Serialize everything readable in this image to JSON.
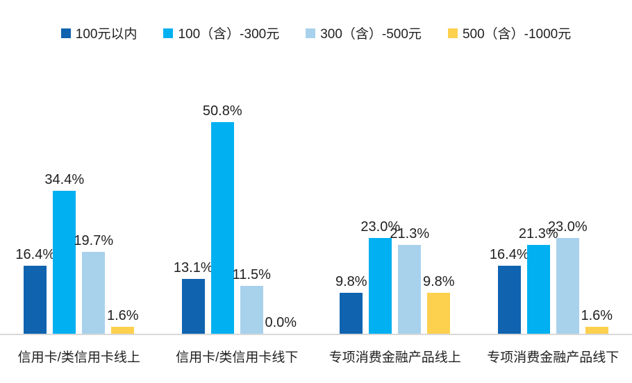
{
  "chart_data": {
    "type": "bar",
    "title": "",
    "xlabel": "",
    "ylabel": "",
    "value_suffix": "%",
    "ylim": [
      0,
      58.7
    ],
    "grid": false,
    "legend_position": "top",
    "axis_line_color": "#d9d9d9",
    "categories": [
      "信用卡/类信用卡线上",
      "信用卡/类信用卡线下",
      "专项消费金融产品线上",
      "专项消费金融产品线下"
    ],
    "series": [
      {
        "name": "100元以内",
        "color": "#0f63af",
        "values": [
          16.4,
          13.1,
          9.8,
          16.4
        ],
        "labels": [
          "16.4%",
          "13.1%",
          "9.8%",
          "16.4%"
        ]
      },
      {
        "name": "100（含）-300元",
        "color": "#00b0f0",
        "values": [
          34.4,
          50.8,
          23.0,
          21.3
        ],
        "labels": [
          "34.4%",
          "50.8%",
          "23.0%",
          "21.3%"
        ]
      },
      {
        "name": "300（含）-500元",
        "color": "#a8d1ec",
        "values": [
          19.7,
          11.5,
          21.3,
          23.0
        ],
        "labels": [
          "19.7%",
          "11.5%",
          "21.3%",
          "23.0%"
        ]
      },
      {
        "name": "500（含）-1000元",
        "color": "#fdd04e",
        "values": [
          1.6,
          0.0,
          9.8,
          1.6
        ],
        "labels": [
          "1.6%",
          "0.0%",
          "9.8%",
          "1.6%"
        ]
      }
    ]
  }
}
